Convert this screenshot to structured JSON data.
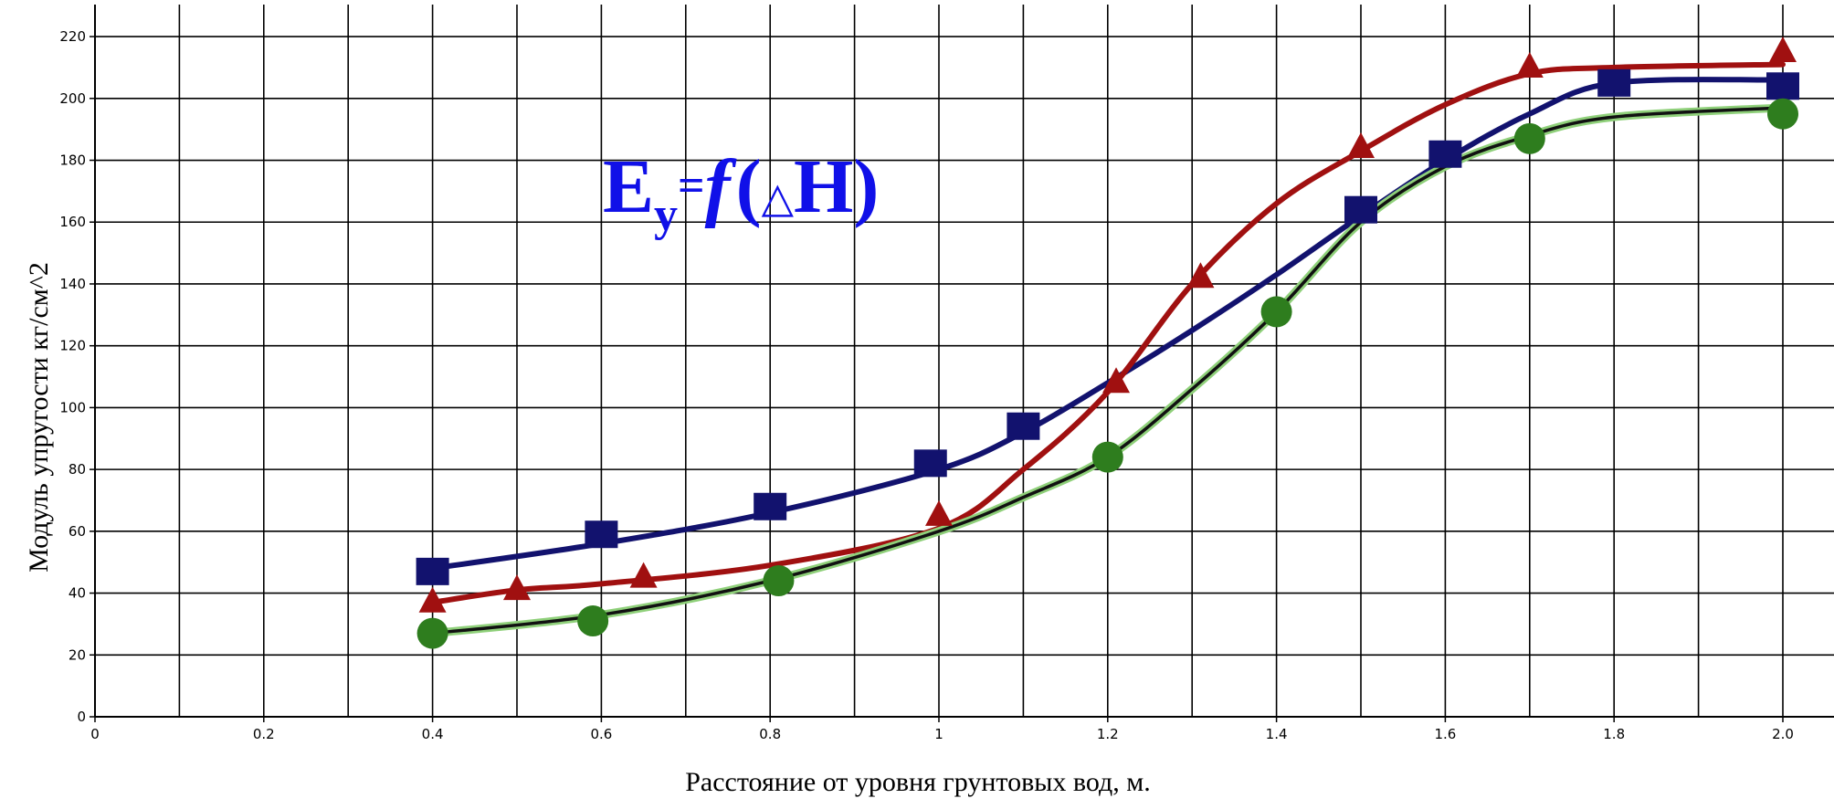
{
  "chart_data": {
    "type": "line",
    "title": "",
    "annotation": {
      "E": "E",
      "sub": "y",
      "eq": "=",
      "f": "f",
      "open": "(",
      "delta": "△",
      "H": "H",
      "close": ")"
    },
    "xlabel": "Расстояние от уровня грунтовых вод, м.",
    "ylabel": "Модуль упругости кг/см^2",
    "xlim": [
      0,
      2.0
    ],
    "ylim": [
      0,
      220
    ],
    "x_ticks": [
      0,
      0.2,
      0.4,
      0.6,
      0.8,
      1,
      1.2,
      1.4,
      1.6,
      1.8,
      2.0
    ],
    "x_tick_labels": [
      "0",
      "0.2",
      "0.4",
      "0.6",
      "0.8",
      "1",
      "1.2",
      "1.4",
      "1.6",
      "1.8",
      "2.0"
    ],
    "y_ticks": [
      0,
      20,
      40,
      60,
      80,
      100,
      120,
      140,
      160,
      180,
      200,
      220
    ],
    "y_tick_labels": [
      "0",
      "20",
      "40",
      "60",
      "80",
      "100",
      "120",
      "140",
      "160",
      "180",
      "200",
      "220"
    ],
    "grid": true,
    "legend": "none",
    "series": [
      {
        "marker": "square",
        "color": "#12126e",
        "points": [
          [
            0.4,
            47
          ],
          [
            0.6,
            59
          ],
          [
            0.8,
            68
          ],
          [
            0.99,
            82
          ],
          [
            1.1,
            94
          ],
          [
            1.5,
            164
          ],
          [
            1.6,
            182
          ],
          [
            1.8,
            205
          ],
          [
            2.0,
            204
          ]
        ],
        "curve": [
          [
            0.4,
            48
          ],
          [
            0.6,
            56
          ],
          [
            0.8,
            66
          ],
          [
            1.0,
            80
          ],
          [
            1.1,
            92
          ],
          [
            1.2,
            108
          ],
          [
            1.3,
            125
          ],
          [
            1.4,
            143
          ],
          [
            1.5,
            162
          ],
          [
            1.6,
            180
          ],
          [
            1.7,
            195
          ],
          [
            1.8,
            205
          ],
          [
            2.0,
            206
          ]
        ]
      },
      {
        "marker": "triangle",
        "color": "#a01010",
        "points": [
          [
            0.4,
            37
          ],
          [
            0.5,
            41
          ],
          [
            0.65,
            45
          ],
          [
            1.0,
            65
          ],
          [
            1.21,
            108
          ],
          [
            1.31,
            142
          ],
          [
            1.5,
            184
          ],
          [
            1.7,
            210
          ],
          [
            2.0,
            215
          ]
        ],
        "curve": [
          [
            0.4,
            37
          ],
          [
            0.5,
            41
          ],
          [
            0.6,
            43
          ],
          [
            0.8,
            49
          ],
          [
            1.0,
            61
          ],
          [
            1.1,
            80
          ],
          [
            1.2,
            105
          ],
          [
            1.3,
            140
          ],
          [
            1.4,
            166
          ],
          [
            1.5,
            183
          ],
          [
            1.6,
            198
          ],
          [
            1.7,
            208
          ],
          [
            1.8,
            210
          ],
          [
            2.0,
            211
          ]
        ]
      },
      {
        "marker": "circle",
        "color": "#2e7d1e",
        "points": [
          [
            0.4,
            27
          ],
          [
            0.59,
            31
          ],
          [
            0.81,
            44
          ],
          [
            1.2,
            84
          ],
          [
            1.4,
            131
          ],
          [
            1.7,
            187
          ],
          [
            2.0,
            195
          ]
        ],
        "curve": [
          [
            0.4,
            27
          ],
          [
            0.6,
            33
          ],
          [
            0.8,
            44
          ],
          [
            1.0,
            60
          ],
          [
            1.1,
            71
          ],
          [
            1.2,
            84
          ],
          [
            1.3,
            106
          ],
          [
            1.4,
            131
          ],
          [
            1.5,
            160
          ],
          [
            1.6,
            178
          ],
          [
            1.7,
            188
          ],
          [
            1.8,
            194
          ],
          [
            2.0,
            197
          ]
        ]
      }
    ]
  }
}
